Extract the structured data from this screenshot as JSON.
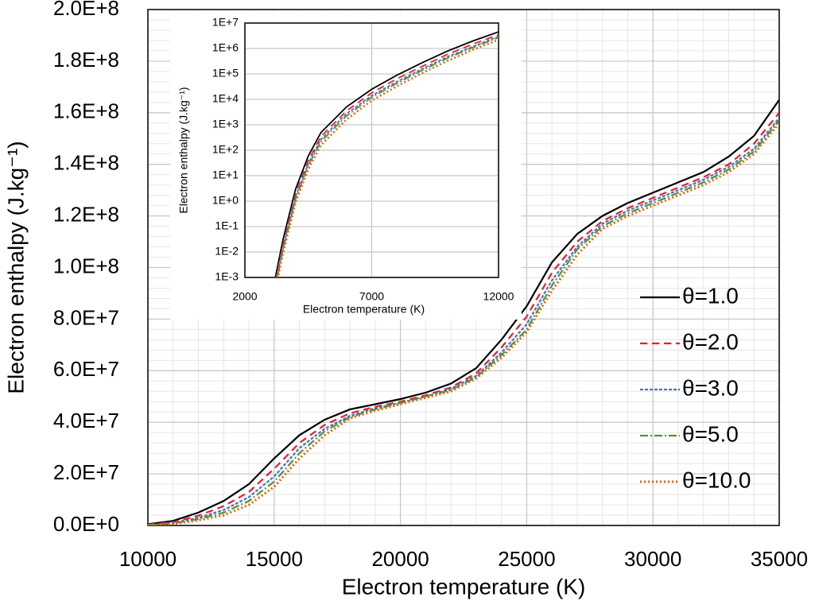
{
  "chart_data": [
    {
      "type": "line",
      "x_label": "Electron temperature (K)",
      "y_label": "Electron enthalpy (J.kg⁻¹)",
      "x": [
        10000,
        11000,
        12000,
        13000,
        14000,
        15000,
        16000,
        17000,
        18000,
        19000,
        20000,
        21000,
        22000,
        23000,
        24000,
        25000,
        26000,
        27000,
        28000,
        29000,
        30000,
        31000,
        32000,
        33000,
        34000,
        35000
      ],
      "series": [
        {
          "name": "θ=1.0",
          "color": "#000000",
          "dash": "solid",
          "values": [
            500000,
            1800000,
            5000000,
            9500000,
            16000000,
            26000000,
            35000000,
            41000000,
            45000000,
            47000000,
            49000000,
            51500000,
            55000000,
            61000000,
            72000000,
            85000000,
            102000000,
            113000000,
            120000000,
            125000000,
            129000000,
            133000000,
            137000000,
            143000000,
            151000000,
            165000000
          ]
        },
        {
          "name": "θ=2.0",
          "color": "#e8202a",
          "dash": "dashed",
          "values": [
            300000,
            1300000,
            3800000,
            7500000,
            13000000,
            22000000,
            32000000,
            39000000,
            43500000,
            46000000,
            48000000,
            50500000,
            53500000,
            59000000,
            69000000,
            81000000,
            98000000,
            110000000,
            118000000,
            123000000,
            127000000,
            131000000,
            135000000,
            140000000,
            148000000,
            160000000
          ]
        },
        {
          "name": "θ=3.0",
          "color": "#4472c4",
          "dash": "short-dashed",
          "values": [
            200000,
            1000000,
            3000000,
            6000000,
            11000000,
            19000000,
            30000000,
            37500000,
            42500000,
            45500000,
            47500000,
            50000000,
            53000000,
            58000000,
            67000000,
            78000000,
            95000000,
            108000000,
            117000000,
            122000000,
            126000000,
            130000000,
            134000000,
            139000000,
            146000000,
            158000000
          ]
        },
        {
          "name": "θ=5.0",
          "color": "#5a8f2e",
          "dash": "dash-dot",
          "values": [
            150000,
            800000,
            2500000,
            5000000,
            9500000,
            17000000,
            28000000,
            36500000,
            42000000,
            45000000,
            47500000,
            50000000,
            52500000,
            57500000,
            66000000,
            76000000,
            93000000,
            107000000,
            116000000,
            121000000,
            125000000,
            129000000,
            133000000,
            138000000,
            145000000,
            157000000
          ]
        },
        {
          "name": "θ=10.0",
          "color": "#d9661a",
          "dash": "dotted",
          "values": [
            100000,
            600000,
            2000000,
            4000000,
            8000000,
            15000000,
            26000000,
            35000000,
            41500000,
            44500000,
            47000000,
            49500000,
            52000000,
            57000000,
            65000000,
            75000000,
            91000000,
            105000000,
            115000000,
            120000000,
            124000000,
            128000000,
            132000000,
            137000000,
            144000000,
            156000000
          ]
        }
      ],
      "xlim": [
        10000,
        35000
      ],
      "xticks": [
        10000,
        15000,
        20000,
        25000,
        30000,
        35000
      ],
      "ylim": [
        0,
        200000000
      ],
      "yticks": [
        {
          "value": 0,
          "label": "0.0E+0"
        },
        {
          "value": 20000000,
          "label": "2.0E+7"
        },
        {
          "value": 40000000,
          "label": "4.0E+7"
        },
        {
          "value": 60000000,
          "label": "6.0E+7"
        },
        {
          "value": 80000000,
          "label": "8.0E+7"
        },
        {
          "value": 100000000,
          "label": "1.0E+8"
        },
        {
          "value": 120000000,
          "label": "1.2E+8"
        },
        {
          "value": 140000000,
          "label": "1.4E+8"
        },
        {
          "value": 160000000,
          "label": "1.6E+8"
        },
        {
          "value": 180000000,
          "label": "1.8E+8"
        },
        {
          "value": 200000000,
          "label": "2.0E+8"
        }
      ],
      "grid": true,
      "legend": "right"
    },
    {
      "type": "line",
      "x_label": "Electron temperature (K)",
      "y_label": "Electron enthalpy (J.kg⁻¹)",
      "x": [
        3200,
        3500,
        4000,
        4500,
        5000,
        6000,
        7000,
        8000,
        9000,
        10000,
        11000,
        12000
      ],
      "series": [
        {
          "name": "θ=1.0",
          "color": "#000000",
          "dash": "solid",
          "values": [
            0.001,
            0.03,
            3,
            60,
            500,
            5000,
            25000,
            90000,
            280000,
            800000,
            2000000,
            4500000
          ]
        },
        {
          "name": "θ=2.0",
          "color": "#e8202a",
          "dash": "dashed",
          "values": [
            0.0007,
            0.02,
            2,
            40,
            350,
            3500,
            18000,
            65000,
            200000,
            600000,
            1500000,
            3500000
          ]
        },
        {
          "name": "θ=3.0",
          "color": "#4472c4",
          "dash": "short-dashed",
          "values": [
            0.0005,
            0.015,
            1.5,
            30,
            270,
            2700,
            14000,
            50000,
            160000,
            480000,
            1200000,
            3000000
          ]
        },
        {
          "name": "θ=5.0",
          "color": "#5a8f2e",
          "dash": "dash-dot",
          "values": [
            0.0004,
            0.012,
            1.2,
            25,
            220,
            2200,
            12000,
            43000,
            140000,
            420000,
            1100000,
            2700000
          ]
        },
        {
          "name": "θ=10.0",
          "color": "#d9661a",
          "dash": "dotted",
          "values": [
            0.0003,
            0.009,
            0.9,
            18,
            160,
            1600,
            9000,
            33000,
            110000,
            330000,
            900000,
            2200000
          ]
        }
      ],
      "xlim": [
        2000,
        12000
      ],
      "xticks": [
        2000,
        7000,
        12000
      ],
      "ylim": [
        0.001,
        10000000
      ],
      "log_y": true,
      "yticks": [
        {
          "value": 0.001,
          "label": "1E-3"
        },
        {
          "value": 0.01,
          "label": "1E-2"
        },
        {
          "value": 0.1,
          "label": "1E-1"
        },
        {
          "value": 1,
          "label": "1E+0"
        },
        {
          "value": 10,
          "label": "1E+1"
        },
        {
          "value": 100,
          "label": "1E+2"
        },
        {
          "value": 1000,
          "label": "1E+3"
        },
        {
          "value": 10000,
          "label": "1E+4"
        },
        {
          "value": 100000,
          "label": "1E+5"
        },
        {
          "value": 1000000,
          "label": "1E+6"
        },
        {
          "value": 10000000,
          "label": "1E+7"
        }
      ],
      "grid": true
    }
  ]
}
